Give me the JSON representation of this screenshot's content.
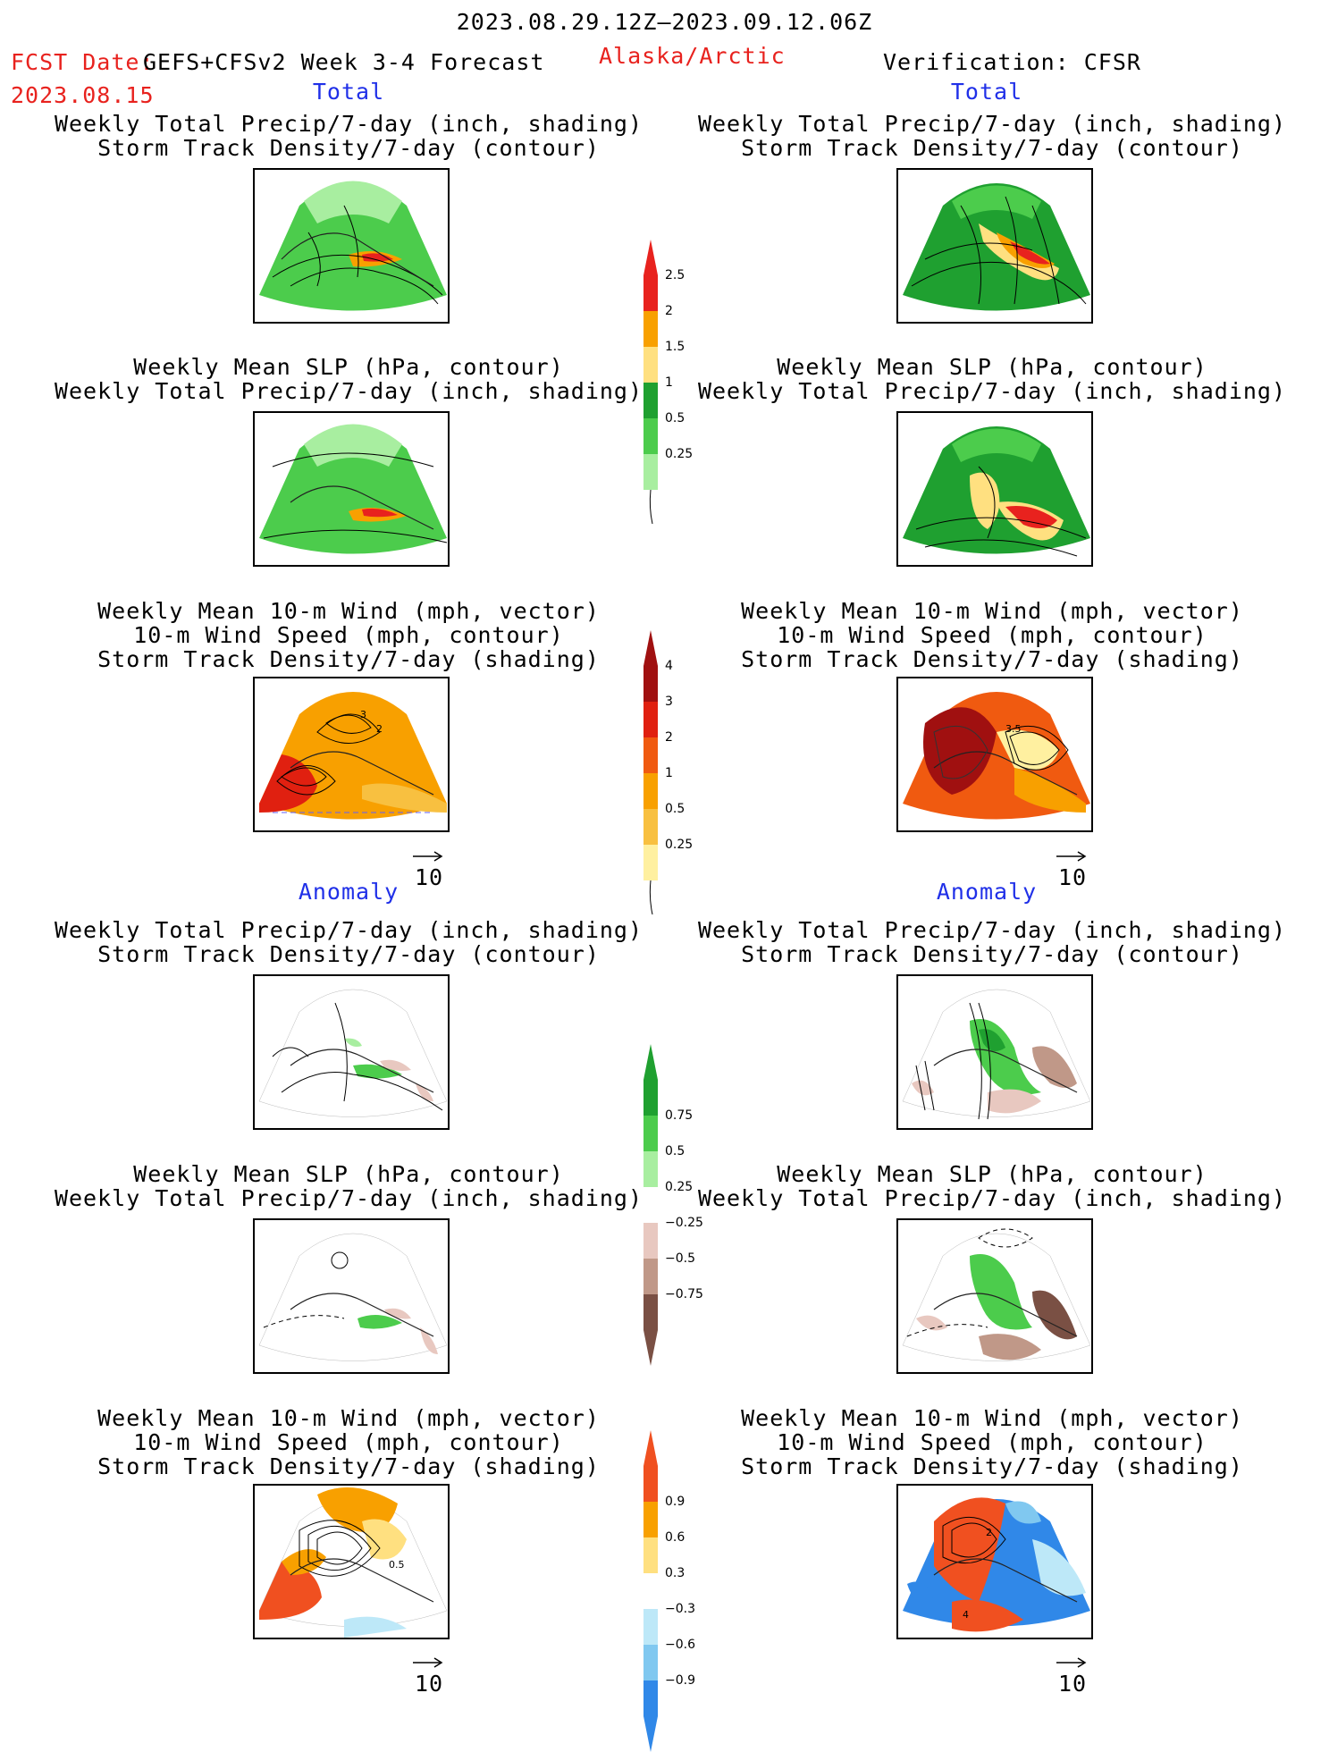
{
  "header": {
    "date_range": "2023.08.29.12Z–2023.09.12.06Z",
    "fcst_label": "FCST Date:",
    "fcst_model": "GEFS+CFSv2 Week 3-4 Forecast",
    "fcst_date": "2023.08.15",
    "region": "Alaska/Arctic",
    "verification": "Verification: CFSR"
  },
  "sections": {
    "total_left": "Total",
    "total_right": "Total",
    "anomaly_left": "Anomaly",
    "anomaly_right": "Anomaly"
  },
  "titles": {
    "precip_storm": [
      "Weekly Total Precip/7-day (inch, shading)",
      "Storm Track Density/7-day (contour)"
    ],
    "slp_precip": [
      "Weekly Mean SLP (hPa, contour)",
      "Weekly Total Precip/7-day (inch, shading)"
    ],
    "wind_storm": [
      "Weekly Mean 10-m Wind (mph, vector)",
      "10-m Wind Speed (mph, contour)",
      "Storm Track Density/7-day (shading)"
    ]
  },
  "colorbars": {
    "total_precip": {
      "labels": [
        "2.5",
        "2",
        "1.5",
        "1",
        "0.5",
        "0.25"
      ],
      "colors": [
        "#e8221e",
        "#f8a000",
        "#ffe080",
        "#1fa030",
        "#4ccc4c",
        "#a8eea0"
      ]
    },
    "total_storm": {
      "labels": [
        "4",
        "3",
        "2",
        "1",
        "0.5",
        "0.25"
      ],
      "colors": [
        "#a01010",
        "#e02010",
        "#f05a10",
        "#f8a000",
        "#f8c040",
        "#fff0a0"
      ]
    },
    "anom_precip": {
      "labels": [
        "0.75",
        "0.5",
        "0.25",
        "−0.25",
        "−0.5",
        "−0.75"
      ],
      "colors": [
        "#1fa030",
        "#4ccc4c",
        "#a8eea0",
        "#e8c8c0",
        "#c09888",
        "#7a5044"
      ]
    },
    "anom_storm": {
      "labels": [
        "0.9",
        "0.6",
        "0.3",
        "−0.3",
        "−0.6",
        "−0.9"
      ],
      "colors": [
        "#f05020",
        "#f8a000",
        "#ffe080",
        "#bde8f8",
        "#80c8f0",
        "#3088e8"
      ]
    }
  },
  "vector_scale": "10",
  "map_labels": {
    "wind_left_a": "3",
    "wind_left_b": "2",
    "wind_right_a": "3.5",
    "anom_wind_left": "0.5",
    "anom_wind_right_a": "2",
    "anom_wind_right_b": "4"
  }
}
